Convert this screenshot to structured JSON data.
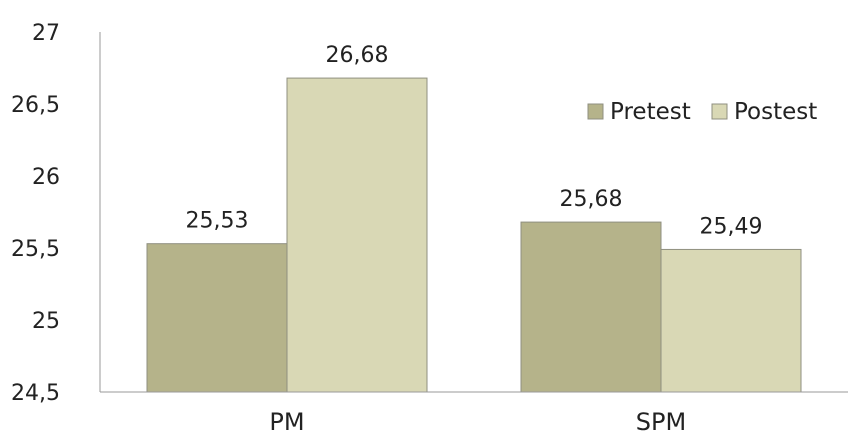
{
  "chart_data": {
    "type": "bar",
    "categories": [
      "PM",
      "SPM"
    ],
    "series": [
      {
        "name": "Pretest",
        "values": [
          25.53,
          25.68
        ],
        "labels": [
          "25,53",
          "25,68"
        ]
      },
      {
        "name": "Postest",
        "values": [
          26.68,
          25.49
        ],
        "labels": [
          "26,68",
          "25,49"
        ]
      }
    ],
    "colors": {
      "Pretest": "#b5b38a",
      "Postest": "#d9d8b5"
    },
    "ylim": [
      24.5,
      27
    ],
    "yticks": [
      24.5,
      25,
      25.5,
      26,
      26.5,
      27
    ],
    "ytick_labels": [
      "24,5",
      "25",
      "25,5",
      "26",
      "26,5",
      "27"
    ],
    "title": "",
    "xlabel": "",
    "ylabel": "",
    "grid": false,
    "legend_position": "top-right"
  }
}
